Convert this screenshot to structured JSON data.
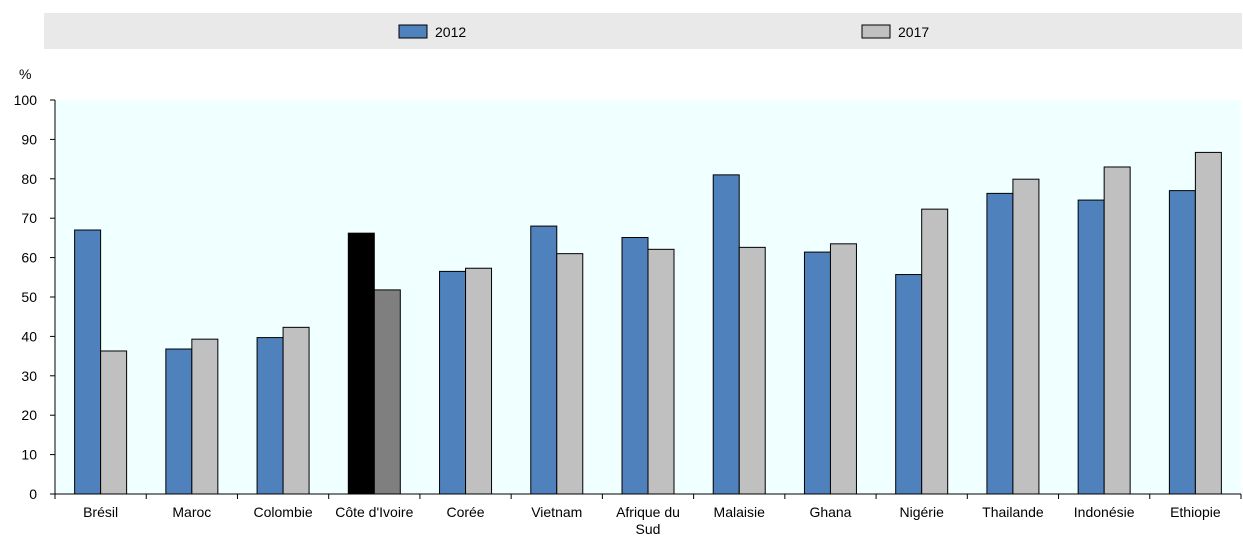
{
  "chart_data": {
    "type": "bar",
    "ylabel": "%",
    "ylim": [
      0,
      100
    ],
    "yticks": [
      0,
      10,
      20,
      30,
      40,
      50,
      60,
      70,
      80,
      90,
      100
    ],
    "grid": false,
    "legend_position": "top",
    "categories": [
      [
        "Brésil"
      ],
      [
        "Maroc"
      ],
      [
        "Colombie"
      ],
      [
        "Côte d'Ivoire"
      ],
      [
        "Corée"
      ],
      [
        "Vietnam"
      ],
      [
        "Afrique du",
        "Sud"
      ],
      [
        "Malaisie"
      ],
      [
        "Ghana"
      ],
      [
        "Nigérie"
      ],
      [
        "Thailande"
      ],
      [
        "Indonésie"
      ],
      [
        "Ethiopie"
      ]
    ],
    "series": [
      {
        "name": "2012",
        "color": "#4f81bd",
        "values": [
          67,
          36.8,
          39.7,
          66.2,
          56.5,
          68,
          65.1,
          81,
          61.4,
          55.7,
          76.3,
          74.6,
          77
        ]
      },
      {
        "name": "2017",
        "color": "#c0c0c0",
        "values": [
          36.3,
          39.3,
          42.3,
          51.8,
          57.3,
          61,
          62.1,
          62.6,
          63.5,
          72.3,
          79.9,
          83,
          86.7
        ]
      }
    ],
    "highlight": {
      "category_index": 3,
      "colors": [
        "#000000",
        "#7f7f7f"
      ]
    }
  }
}
